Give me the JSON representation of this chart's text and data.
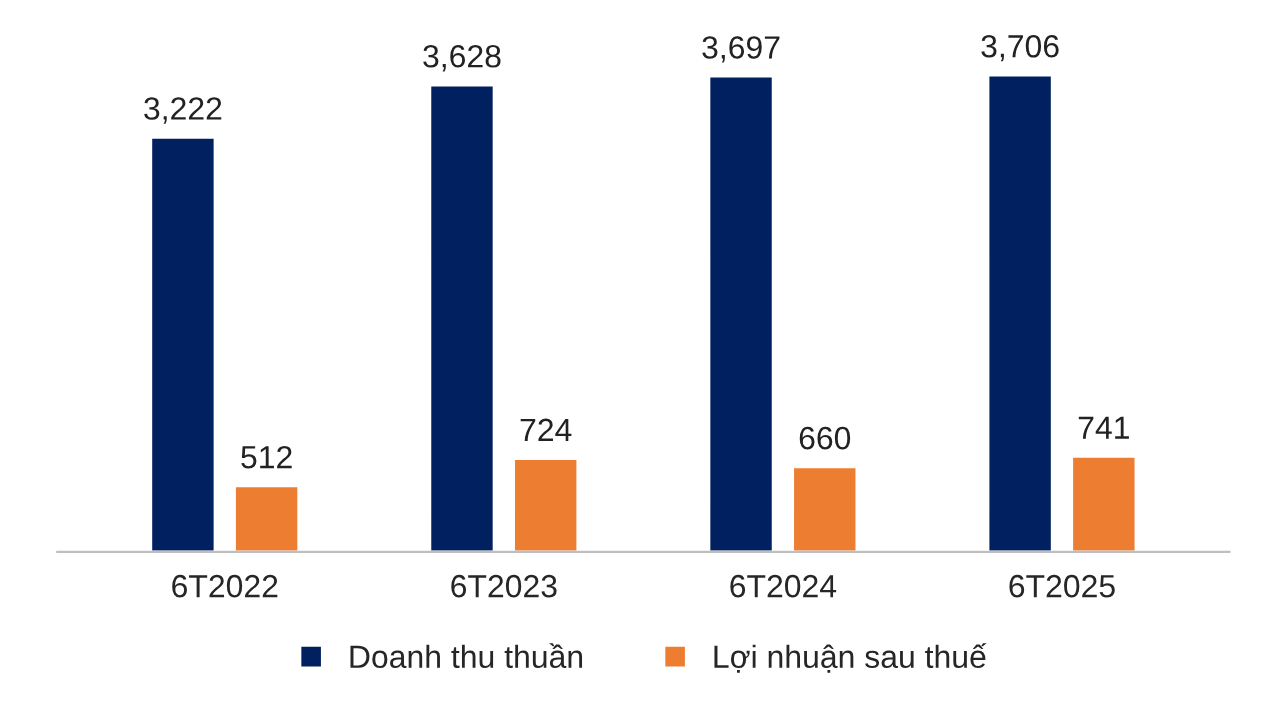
{
  "chart_data": {
    "type": "bar",
    "categories": [
      "6T2022",
      "6T2023",
      "6T2024",
      "6T2025"
    ],
    "series": [
      {
        "name": "Doanh thu thuần",
        "color": "#002060",
        "values": [
          3222,
          3628,
          3697,
          3706
        ],
        "value_labels": [
          "3,222",
          "3,628",
          "3,697",
          "3,706"
        ]
      },
      {
        "name": "Lợi nhuận sau thuế",
        "color": "#ed7d31",
        "values": [
          512,
          724,
          660,
          741
        ],
        "value_labels": [
          "512",
          "724",
          "660",
          "741"
        ]
      }
    ],
    "legend": "bottom",
    "grid": false,
    "tick_labels": "x"
  }
}
